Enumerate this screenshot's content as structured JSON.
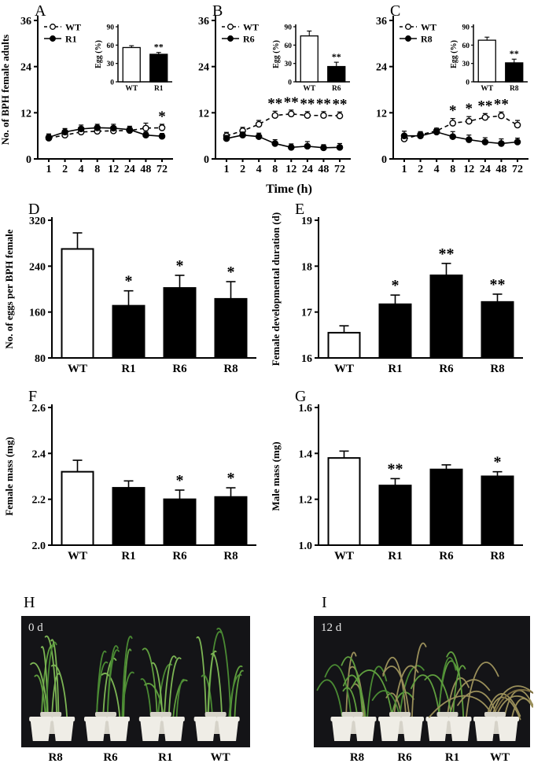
{
  "chart_data": {
    "shared_xlabel": "Time (h)",
    "line_panels": [
      {
        "label": "A",
        "type": "line",
        "ylabel": "No. of BPH female adults",
        "ymax": 36,
        "yticks": [
          0,
          12,
          24,
          36
        ],
        "x_categories": [
          "1",
          "2",
          "4",
          "8",
          "12",
          "24",
          "48",
          "72"
        ],
        "series": [
          {
            "name": "WT",
            "marker": "open",
            "line": "dashed",
            "values": [
              5.4,
              6.2,
              7.0,
              7.2,
              7.3,
              7.4,
              8.0,
              8.1
            ],
            "errors": [
              0.8,
              0.8,
              0.8,
              0.8,
              0.8,
              0.8,
              1.3,
              0.9
            ]
          },
          {
            "name": "R1",
            "marker": "filled",
            "line": "solid",
            "values": [
              5.6,
              7.0,
              7.8,
              8.1,
              8.0,
              7.6,
              6.2,
              5.9
            ],
            "errors": [
              0.9,
              0.9,
              1.0,
              0.9,
              1.0,
              0.9,
              0.8,
              0.7
            ]
          }
        ],
        "significance": [
          {
            "x": "72",
            "mark": "*"
          }
        ],
        "inset": {
          "type": "bar",
          "ylabel": "Egg (%)",
          "ymax": 90,
          "yticks": [
            0,
            30,
            60,
            90
          ],
          "categories": [
            "WT",
            "R1"
          ],
          "values": [
            56,
            45
          ],
          "errors": [
            3,
            3
          ],
          "significance": [
            "",
            "**"
          ]
        }
      },
      {
        "label": "B",
        "type": "line",
        "ylabel": "",
        "ymax": 36,
        "yticks": [
          0,
          12,
          24,
          36
        ],
        "x_categories": [
          "1",
          "2",
          "4",
          "8",
          "12",
          "24",
          "48",
          "72"
        ],
        "series": [
          {
            "name": "WT",
            "marker": "open",
            "line": "dashed",
            "values": [
              6.0,
              7.3,
              9.0,
              11.3,
              11.7,
              11.3,
              11.3,
              11.2
            ],
            "errors": [
              0.9,
              0.9,
              1.0,
              1.1,
              1.0,
              1.0,
              1.0,
              1.0
            ]
          },
          {
            "name": "R6",
            "marker": "filled",
            "line": "solid",
            "values": [
              5.3,
              6.2,
              5.8,
              4.0,
              3.0,
              3.3,
              2.9,
              3.0
            ],
            "errors": [
              0.8,
              0.8,
              0.9,
              1.0,
              0.9,
              1.2,
              0.8,
              1.0
            ]
          }
        ],
        "significance": [
          {
            "x": "8",
            "mark": "**"
          },
          {
            "x": "12",
            "mark": "**"
          },
          {
            "x": "24",
            "mark": "**"
          },
          {
            "x": "48",
            "mark": "**"
          },
          {
            "x": "72",
            "mark": "**"
          }
        ],
        "inset": {
          "type": "bar",
          "ylabel": "Egg (%)",
          "ymax": 90,
          "yticks": [
            0,
            30,
            60,
            90
          ],
          "categories": [
            "WT",
            "R6"
          ],
          "values": [
            75,
            25
          ],
          "errors": [
            8,
            7
          ],
          "significance": [
            "",
            "**"
          ]
        }
      },
      {
        "label": "C",
        "type": "line",
        "ylabel": "",
        "ymax": 36,
        "yticks": [
          0,
          12,
          24,
          36
        ],
        "x_categories": [
          "1",
          "2",
          "4",
          "8",
          "12",
          "24",
          "48",
          "72"
        ],
        "series": [
          {
            "name": "WT",
            "marker": "open",
            "line": "dashed",
            "values": [
              5.2,
              6.3,
              7.3,
              9.3,
              9.8,
              10.8,
              11.2,
              8.8
            ],
            "errors": [
              0.8,
              0.8,
              0.7,
              1.2,
              1.2,
              1.0,
              1.0,
              1.2
            ]
          },
          {
            "name": "R8",
            "marker": "filled",
            "line": "solid",
            "values": [
              6.0,
              6.0,
              7.0,
              5.8,
              5.0,
              4.4,
              4.0,
              4.4
            ],
            "errors": [
              1.2,
              0.8,
              0.6,
              1.3,
              1.2,
              1.1,
              1.2,
              1.0
            ]
          }
        ],
        "significance": [
          {
            "x": "8",
            "mark": "*"
          },
          {
            "x": "12",
            "mark": "*"
          },
          {
            "x": "24",
            "mark": "**"
          },
          {
            "x": "48",
            "mark": "**"
          }
        ],
        "inset": {
          "type": "bar",
          "ylabel": "Egg (%)",
          "ymax": 90,
          "yticks": [
            0,
            30,
            60,
            90
          ],
          "categories": [
            "WT",
            "R8"
          ],
          "values": [
            68,
            31
          ],
          "errors": [
            5,
            6
          ],
          "significance": [
            "",
            "**"
          ]
        }
      }
    ],
    "bar_panels": [
      {
        "label": "D",
        "type": "bar",
        "ylabel": "No. of eggs per BPH female",
        "ymin": 80,
        "ymax": 320,
        "ytick_vals": [
          80,
          160,
          240,
          320
        ],
        "ytick_labels": [
          "80",
          "160",
          "240",
          "320"
        ],
        "categories": [
          "WT",
          "R1",
          "R6",
          "R8"
        ],
        "values": [
          270,
          171,
          202,
          183
        ],
        "errors": [
          28,
          26,
          22,
          30
        ],
        "sig": [
          "",
          "*",
          "*",
          "*"
        ]
      },
      {
        "label": "E",
        "type": "bar",
        "ylabel": "Female developmental duration (d)",
        "ymin": 16,
        "ymax": 19,
        "ytick_vals": [
          16,
          17,
          18,
          19
        ],
        "ytick_labels": [
          "16",
          "17",
          "18",
          "19"
        ],
        "categories": [
          "WT",
          "R1",
          "R6",
          "R8"
        ],
        "values": [
          16.55,
          17.17,
          17.8,
          17.22
        ],
        "errors": [
          0.15,
          0.2,
          0.26,
          0.17
        ],
        "sig": [
          "",
          "*",
          "**",
          "**"
        ]
      },
      {
        "label": "F",
        "type": "bar",
        "ylabel": "Female mass (mg)",
        "ymin": 2.0,
        "ymax": 2.6,
        "ytick_vals": [
          2.0,
          2.2,
          2.4,
          2.6
        ],
        "ytick_labels": [
          "2.0",
          "2.2",
          "2.4",
          "2.6"
        ],
        "categories": [
          "WT",
          "R1",
          "R6",
          "R8"
        ],
        "values": [
          2.32,
          2.25,
          2.2,
          2.21
        ],
        "errors": [
          0.05,
          0.03,
          0.04,
          0.04
        ],
        "sig": [
          "",
          "",
          "*",
          "*"
        ]
      },
      {
        "label": "G",
        "type": "bar",
        "ylabel": "Male mass (mg)",
        "ymin": 1.0,
        "ymax": 1.6,
        "ytick_vals": [
          1.0,
          1.2,
          1.4,
          1.6
        ],
        "ytick_labels": [
          "1.0",
          "1.2",
          "1.4",
          "1.6"
        ],
        "categories": [
          "WT",
          "R1",
          "R6",
          "R8"
        ],
        "values": [
          1.38,
          1.26,
          1.33,
          1.3
        ],
        "errors": [
          0.03,
          0.03,
          0.02,
          0.02
        ],
        "sig": [
          "",
          "**",
          "",
          "*"
        ]
      }
    ],
    "photo_panels": [
      {
        "label": "H",
        "time_label": "0 d",
        "groups": [
          "R8",
          "R6",
          "R1",
          "WT"
        ],
        "condition": [
          "healthy",
          "healthy",
          "healthy",
          "healthy"
        ]
      },
      {
        "label": "I",
        "time_label": "12 d",
        "groups": [
          "R8",
          "R6",
          "R1",
          "WT"
        ],
        "condition": [
          "wilting",
          "wilting",
          "wilting",
          "dead"
        ]
      }
    ]
  },
  "colors": {
    "axis": "#000000",
    "bar_fill_wt": "#ffffff",
    "bar_fill_mutant": "#000000",
    "photo_bg": "#141417",
    "pot": "#efede6",
    "pot_shade": "#d6d3c9",
    "plant_green_1": "#5f9e3e",
    "plant_green_2": "#7cb554",
    "plant_green_3": "#4a8a33",
    "plant_wilt": "#9a8f5a",
    "plant_dead": "#7a6b3f"
  }
}
